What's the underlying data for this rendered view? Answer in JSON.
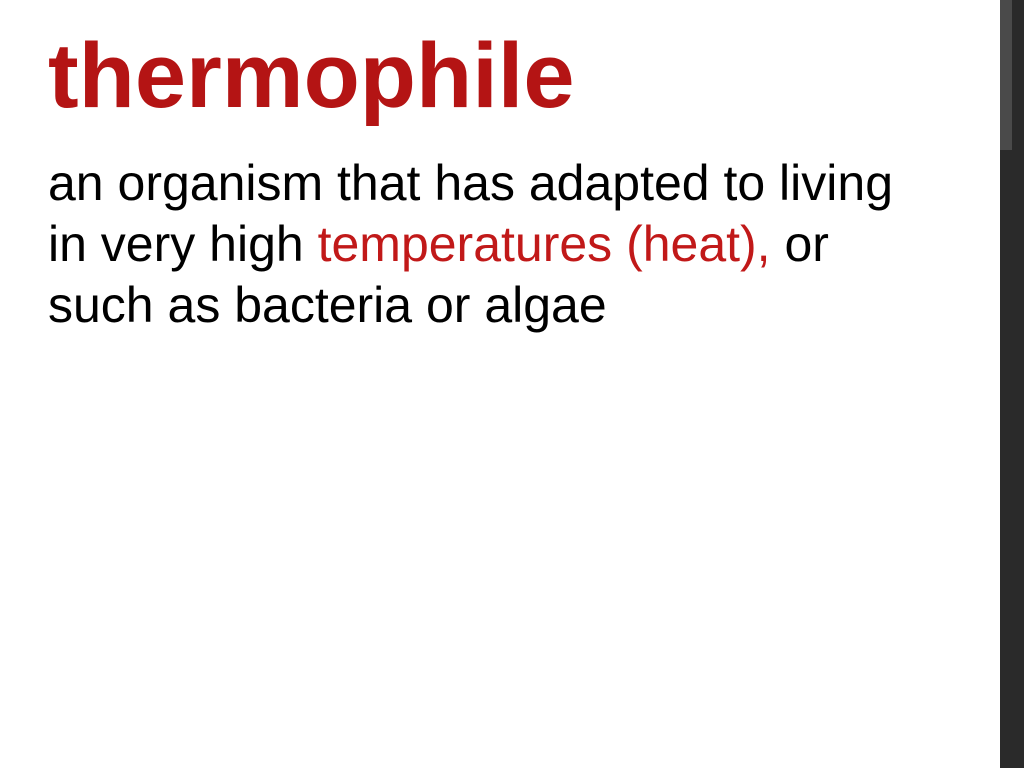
{
  "slide": {
    "title": "thermophile",
    "title_color": "#b41414",
    "definition_parts": [
      {
        "text": "an organism that has adapted to living in very high ",
        "color": "#000000"
      },
      {
        "text": "temperatures (heat),",
        "color": "#c11919"
      },
      {
        "text": "  or such as bacteria or algae",
        "color": "#000000"
      }
    ],
    "background_color": "#ffffff",
    "title_fontsize": 92,
    "body_fontsize": 50
  }
}
